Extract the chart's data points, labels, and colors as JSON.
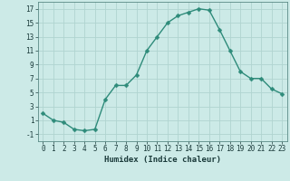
{
  "x": [
    0,
    1,
    2,
    3,
    4,
    5,
    6,
    7,
    8,
    9,
    10,
    11,
    12,
    13,
    14,
    15,
    16,
    17,
    18,
    19,
    20,
    21,
    22,
    23
  ],
  "y": [
    2,
    1,
    0.7,
    -0.3,
    -0.5,
    -0.3,
    4,
    6,
    6,
    7.5,
    11,
    13,
    15,
    16,
    16.5,
    17,
    16.8,
    14,
    11,
    8,
    7,
    7,
    5.5,
    4.8
  ],
  "line_color": "#2e8b7a",
  "marker_color": "#2e8b7a",
  "bg_color": "#cceae7",
  "grid_color": "#b0d4d0",
  "xlabel": "Humidex (Indice chaleur)",
  "xlim": [
    -0.5,
    23.5
  ],
  "ylim": [
    -2,
    18
  ],
  "yticks": [
    -1,
    1,
    3,
    5,
    7,
    9,
    11,
    13,
    15,
    17
  ],
  "xticks": [
    0,
    1,
    2,
    3,
    4,
    5,
    6,
    7,
    8,
    9,
    10,
    11,
    12,
    13,
    14,
    15,
    16,
    17,
    18,
    19,
    20,
    21,
    22,
    23
  ],
  "tick_label_fontsize": 5.5,
  "xlabel_fontsize": 6.5,
  "marker_size": 2.5,
  "line_width": 1.0
}
